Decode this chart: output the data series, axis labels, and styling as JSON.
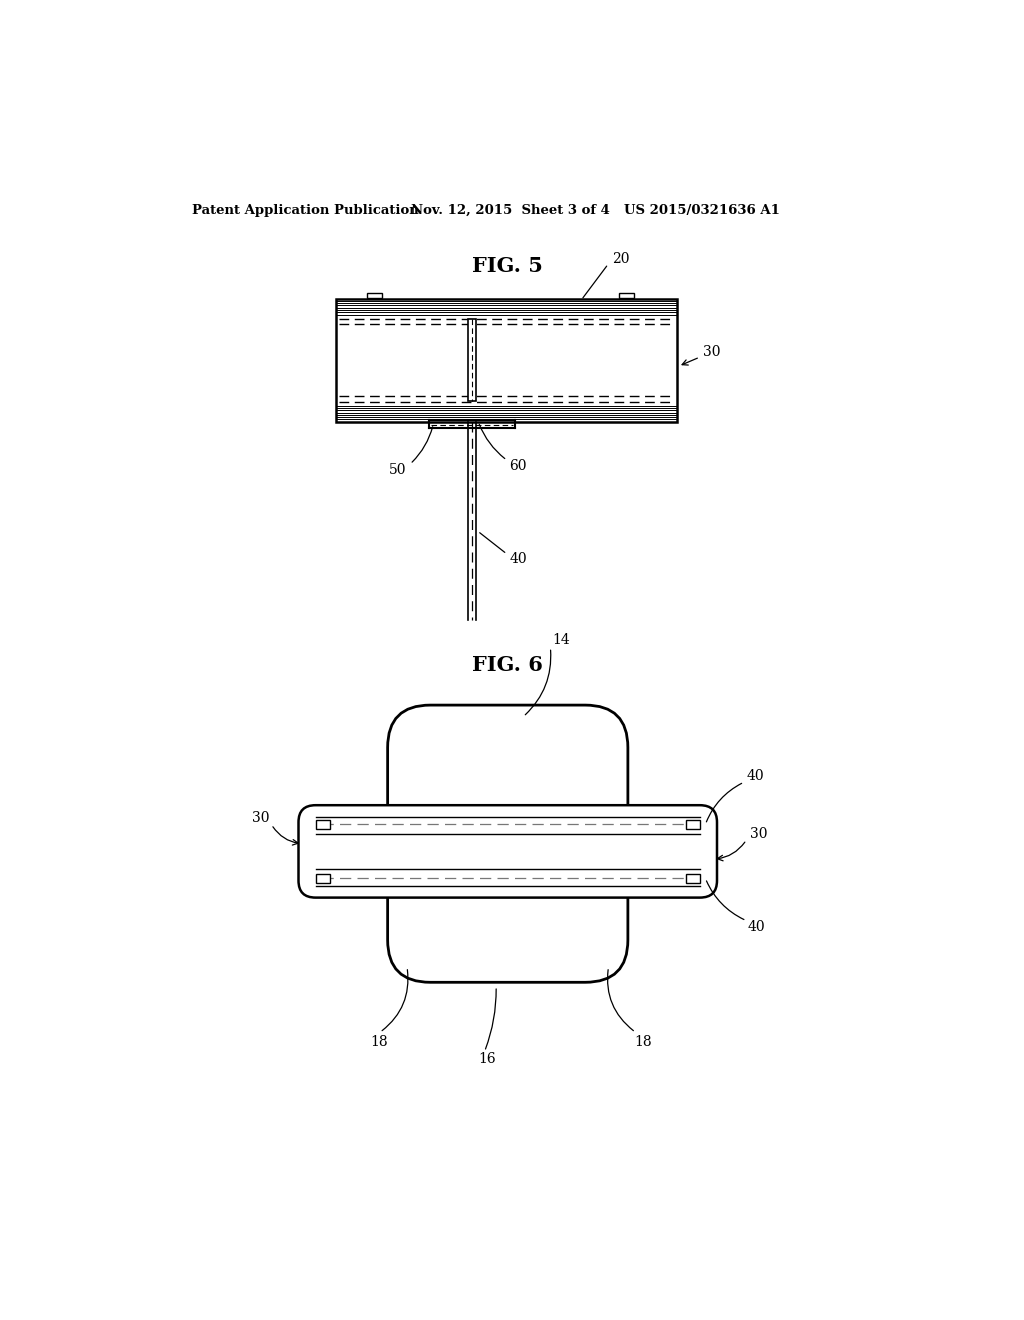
{
  "background_color": "#ffffff",
  "header_text": "Patent Application Publication",
  "header_date": "Nov. 12, 2015  Sheet 3 of 4",
  "header_patent": "US 2015/0321636 A1",
  "fig5_title": "FIG. 5",
  "fig6_title": "FIG. 6",
  "line_color": "#000000"
}
